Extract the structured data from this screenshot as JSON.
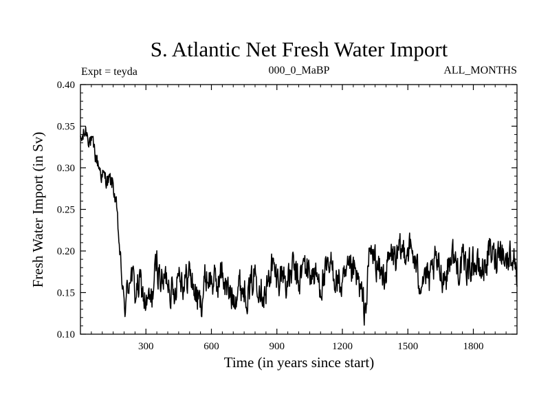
{
  "chart_data": {
    "type": "line",
    "title": "S. Atlantic Net Fresh Water Import",
    "subtitle_left": "Expt = teyda",
    "subtitle_center": "000_0_MaBP",
    "subtitle_right": "ALL_MONTHS",
    "xlabel": "Time (in years since start)",
    "ylabel": "Fresh Water Import (in Sv)",
    "xlim": [
      0,
      2000
    ],
    "ylim": [
      0.1,
      0.4
    ],
    "x_ticks": [
      300,
      600,
      900,
      1200,
      1500,
      1800
    ],
    "y_ticks": [
      0.1,
      0.15,
      0.2,
      0.25,
      0.3,
      0.35,
      0.4
    ],
    "y_tick_labels": [
      "0.10",
      "0.15",
      "0.20",
      "0.25",
      "0.30",
      "0.35",
      "0.40"
    ],
    "series": [
      {
        "name": "Net fresh water import",
        "color": "#000000",
        "x": [
          0,
          25,
          50,
          75,
          100,
          125,
          150,
          165,
          180,
          190,
          200,
          210,
          230,
          250,
          275,
          300,
          325,
          350,
          375,
          400,
          425,
          450,
          475,
          500,
          525,
          550,
          575,
          600,
          625,
          650,
          675,
          700,
          725,
          750,
          775,
          800,
          825,
          850,
          875,
          900,
          925,
          950,
          975,
          1000,
          1025,
          1050,
          1075,
          1100,
          1125,
          1150,
          1175,
          1200,
          1225,
          1250,
          1275,
          1300,
          1310,
          1325,
          1350,
          1375,
          1400,
          1425,
          1450,
          1475,
          1500,
          1525,
          1550,
          1575,
          1600,
          1625,
          1650,
          1675,
          1700,
          1725,
          1750,
          1775,
          1800,
          1825,
          1850,
          1875,
          1900,
          1925,
          1950,
          1975,
          2000
        ],
        "values": [
          0.33,
          0.345,
          0.33,
          0.31,
          0.29,
          0.285,
          0.28,
          0.25,
          0.2,
          0.165,
          0.135,
          0.14,
          0.18,
          0.15,
          0.16,
          0.135,
          0.14,
          0.185,
          0.16,
          0.17,
          0.145,
          0.18,
          0.16,
          0.175,
          0.15,
          0.135,
          0.17,
          0.165,
          0.16,
          0.175,
          0.15,
          0.145,
          0.16,
          0.155,
          0.15,
          0.175,
          0.16,
          0.145,
          0.185,
          0.165,
          0.175,
          0.16,
          0.18,
          0.16,
          0.185,
          0.175,
          0.17,
          0.16,
          0.17,
          0.18,
          0.165,
          0.155,
          0.17,
          0.175,
          0.16,
          0.13,
          0.14,
          0.2,
          0.19,
          0.17,
          0.175,
          0.195,
          0.19,
          0.2,
          0.205,
          0.195,
          0.165,
          0.175,
          0.16,
          0.185,
          0.175,
          0.17,
          0.2,
          0.18,
          0.185,
          0.18,
          0.19,
          0.175,
          0.18,
          0.2,
          0.19,
          0.21,
          0.185,
          0.2,
          0.175
        ]
      }
    ]
  }
}
